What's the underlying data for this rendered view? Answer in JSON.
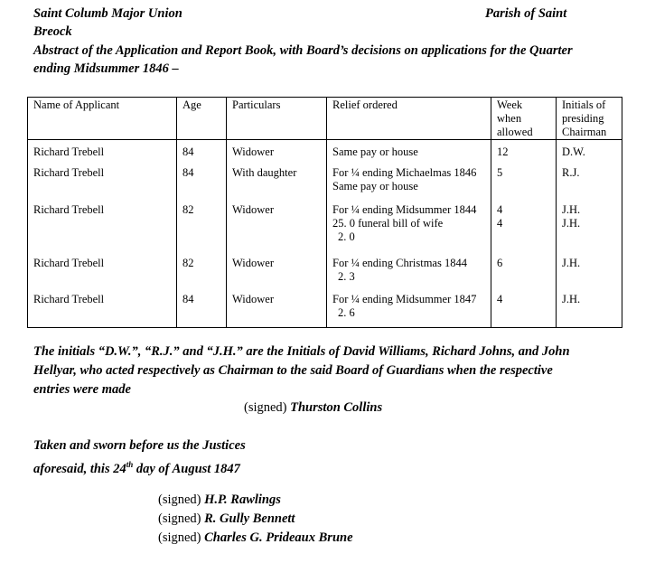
{
  "header": {
    "left": "Saint Columb Major Union",
    "right": "Parish of Saint",
    "left2": "Breock",
    "title_line1": "Abstract of the Application and Report Book, with Board’s decisions on applications for the Quarter",
    "title_line2": "ending Midsummer 1846 –"
  },
  "table": {
    "columns": [
      "Name of Applicant",
      "Age",
      "Particulars",
      "Relief ordered",
      [
        "Week",
        "when",
        "allowed"
      ],
      [
        "Initials of",
        "presiding",
        "Chairman"
      ]
    ],
    "rows": [
      {
        "name": "Richard Trebell",
        "age": "84",
        "particulars": "Widower",
        "relief": [
          "Same pay or house"
        ],
        "week": [
          "12"
        ],
        "initials": [
          "D.W."
        ]
      },
      {
        "name": "Richard Trebell",
        "age": "84",
        "particulars": "With daughter",
        "relief": [
          "For ¼ ending Michaelmas 1846",
          "Same pay or house"
        ],
        "week": [
          "5"
        ],
        "initials": [
          "R.J."
        ]
      },
      {
        "name": "Richard Trebell",
        "age": "82",
        "particulars": "Widower",
        "relief": [
          "For ¼ ending Midsummer 1844",
          "25. 0 funeral bill of wife",
          "2. 0"
        ],
        "week": [
          "4",
          "4"
        ],
        "initials": [
          "J.H.",
          "J.H."
        ]
      },
      {
        "name": "Richard Trebell",
        "age": "82",
        "particulars": "Widower",
        "relief": [
          "For ¼ ending Christmas 1844",
          "2. 3"
        ],
        "week": [
          "6"
        ],
        "initials": [
          "J.H."
        ]
      },
      {
        "name": "Richard Trebell",
        "age": "84",
        "particulars": "Widower",
        "relief": [
          "For ¼ ending Midsummer 1847",
          "2. 6"
        ],
        "week": [
          "4"
        ],
        "initials": [
          "J.H."
        ]
      }
    ]
  },
  "note": {
    "line1": "The initials “D.W.”, “R.J.” and “J.H.” are the Initials of David Williams, Richard Johns, and John",
    "line2": "Hellyar, who acted respectively as Chairman to the said Board of Guardians when the respective",
    "line3": "entries were made"
  },
  "signed_prefix": "(signed)",
  "clerk": "Thurston Collins",
  "sworn": {
    "line1": "Taken and sworn before us the Justices",
    "line2a": "aforesaid, this 24",
    "sup": "th",
    "line2b": " day of August 1847"
  },
  "justices": [
    "H.P. Rawlings",
    "R. Gully Bennett",
    "Charles G. Prideaux Brune"
  ]
}
